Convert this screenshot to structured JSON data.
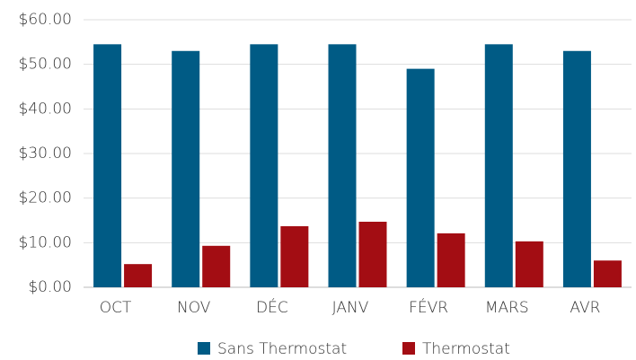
{
  "chart_data": {
    "type": "bar",
    "categories": [
      "OCT",
      "NOV",
      "DÉC",
      "JANV",
      "FÉVR",
      "MARS",
      "AVR"
    ],
    "series": [
      {
        "name": "Sans Thermostat",
        "color": "#005b85",
        "values": [
          54.5,
          53,
          54.5,
          54.5,
          49,
          54.5,
          53
        ]
      },
      {
        "name": "Thermostat",
        "color": "#a30d13",
        "values": [
          5.2,
          9.3,
          13.7,
          14.7,
          12.1,
          10.3,
          6
        ]
      }
    ],
    "ylim": [
      0,
      60
    ],
    "yticks": [
      {
        "value": 0,
        "label": "$0.00"
      },
      {
        "value": 10,
        "label": "$10.00"
      },
      {
        "value": 20,
        "label": "$20.00"
      },
      {
        "value": 30,
        "label": "$30.00"
      },
      {
        "value": 40,
        "label": "$40.00"
      },
      {
        "value": 50,
        "label": "$50.00"
      },
      {
        "value": 60,
        "label": "$60.00"
      }
    ],
    "grid": true,
    "legend": "bottom"
  }
}
